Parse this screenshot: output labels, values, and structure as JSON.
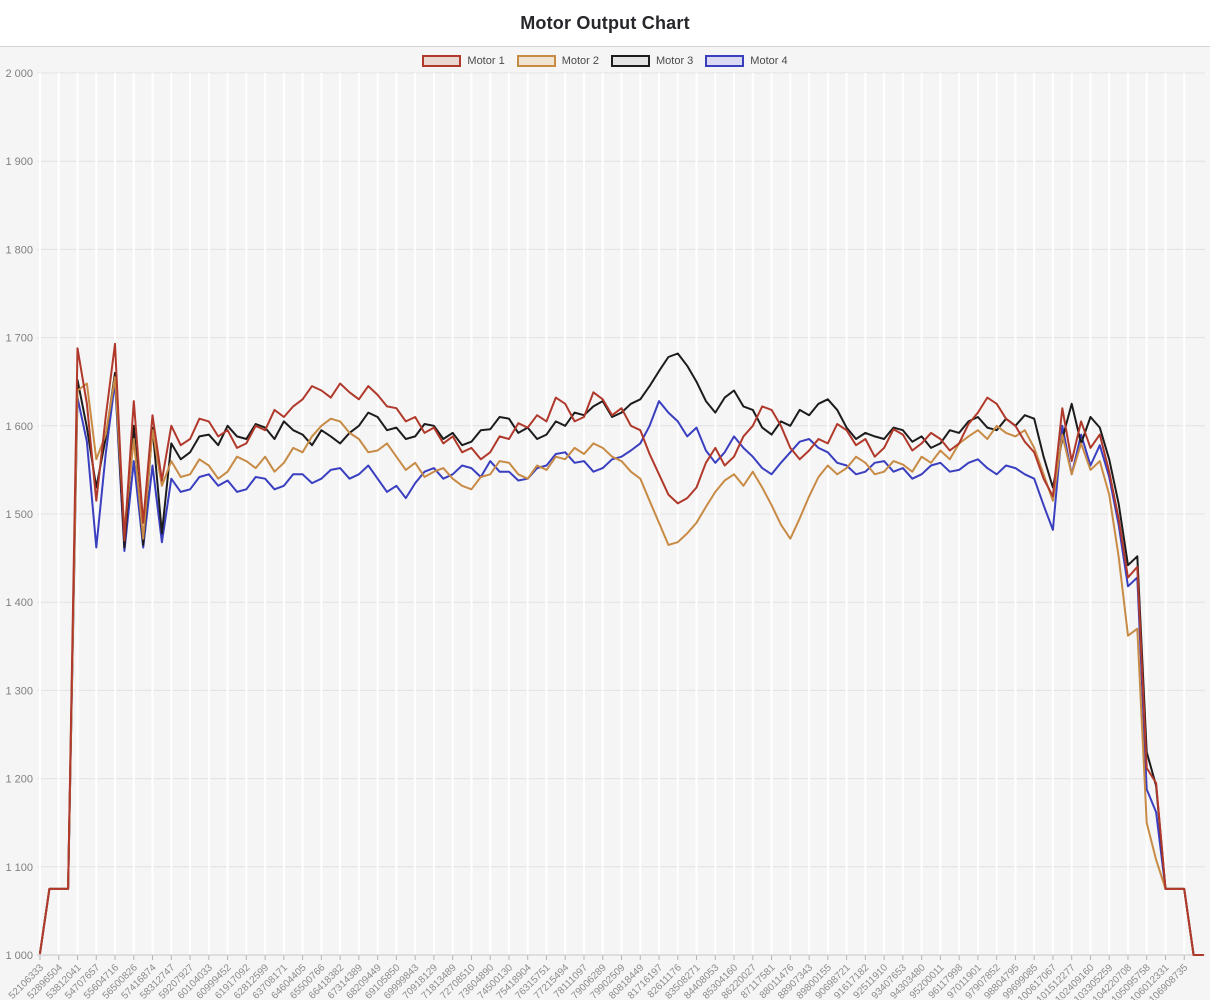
{
  "title": "Motor Output Chart",
  "legend": {
    "items": [
      {
        "label": "Motor 1",
        "color": "#b0392b",
        "swatch_fill": "#e9d8d2"
      },
      {
        "label": "Motor 2",
        "color": "#c88b46",
        "swatch_fill": "#efe3d1"
      },
      {
        "label": "Motor 3",
        "color": "#1c1c1c",
        "swatch_fill": "#e4e4e4"
      },
      {
        "label": "Motor 4",
        "color": "#3a3fc0",
        "swatch_fill": "#dadbf2"
      }
    ]
  },
  "chart_data": {
    "type": "line",
    "title": "Motor Output Chart",
    "xlabel": "",
    "ylabel": "",
    "ylim": [
      1000,
      2000
    ],
    "y_ticks": [
      {
        "value": 1000,
        "label": "1 000"
      },
      {
        "value": 1100,
        "label": "1 100"
      },
      {
        "value": 1200,
        "label": "1 200"
      },
      {
        "value": 1300,
        "label": "1 300"
      },
      {
        "value": 1400,
        "label": "1 400"
      },
      {
        "value": 1500,
        "label": "1 500"
      },
      {
        "value": 1600,
        "label": "1 600"
      },
      {
        "value": 1700,
        "label": "1 700"
      },
      {
        "value": 1800,
        "label": "1 800"
      },
      {
        "value": 1900,
        "label": "1 900"
      },
      {
        "value": 2000,
        "label": "2 000"
      }
    ],
    "x_tick_labels": [
      "52106333",
      "52896504",
      "53812041",
      "54707657",
      "55604716",
      "56500826",
      "57416874",
      "58312747",
      "59207927",
      "60104033",
      "60999452",
      "61917092",
      "62812599",
      "63708171",
      "64604405",
      "65500766",
      "66418382",
      "67314389",
      "68209449",
      "69105850",
      "69999843",
      "70918129",
      "71813489",
      "72708510",
      "73604890",
      "74500130",
      "75418904",
      "76315751",
      "77215494",
      "78111097",
      "79006289",
      "79902509",
      "80818449",
      "81716197",
      "82611176",
      "83508271",
      "84408053",
      "85304160",
      "86220027",
      "87117581",
      "88011476",
      "88907343",
      "89800155",
      "90698721",
      "91617182",
      "92511910",
      "93407653",
      "94303480",
      "95200011",
      "96117998",
      "97011901",
      "97907852",
      "98804795",
      "99699085",
      "100617067",
      "101512277",
      "102409160",
      "103305259",
      "104220708",
      "105095758",
      "106012331",
      "106908735"
    ],
    "sampling_note": "125 samples per series; x tick k sits at sample index 2k",
    "legend_position": "top-center",
    "grid": {
      "vertical": "#ffffff",
      "horizontal": "#e2e2e2",
      "panel_bg": "#f5f5f5"
    },
    "axis_style": {
      "axis_line": "#c8c8c8",
      "tick": "#b3b3b3",
      "y_label_color": "#808080",
      "x_label_color": "#8c8c8c",
      "title_color": "#26262b"
    },
    "draw_order": "last legend entry drawn first; Motor 1 on top",
    "series": [
      {
        "name": "Motor 1",
        "color": "#b0392b",
        "values": [
          1002,
          1075,
          1075,
          1075,
          1688,
          1625,
          1515,
          1610,
          1693,
          1470,
          1628,
          1490,
          1612,
          1538,
          1600,
          1578,
          1585,
          1608,
          1605,
          1588,
          1595,
          1575,
          1580,
          1600,
          1595,
          1618,
          1610,
          1622,
          1630,
          1645,
          1640,
          1632,
          1648,
          1638,
          1630,
          1645,
          1635,
          1622,
          1620,
          1605,
          1610,
          1592,
          1598,
          1580,
          1588,
          1570,
          1575,
          1562,
          1570,
          1588,
          1585,
          1603,
          1598,
          1612,
          1605,
          1632,
          1625,
          1605,
          1610,
          1638,
          1630,
          1612,
          1620,
          1600,
          1595,
          1568,
          1545,
          1522,
          1512,
          1518,
          1530,
          1558,
          1575,
          1555,
          1565,
          1588,
          1600,
          1622,
          1618,
          1600,
          1575,
          1562,
          1572,
          1585,
          1580,
          1602,
          1595,
          1578,
          1585,
          1565,
          1575,
          1596,
          1590,
          1572,
          1580,
          1592,
          1585,
          1572,
          1580,
          1602,
          1615,
          1632,
          1625,
          1608,
          1600,
          1582,
          1570,
          1540,
          1520,
          1620,
          1560,
          1605,
          1575,
          1590,
          1548,
          1495,
          1428,
          1440,
          1212,
          1195,
          1075,
          1075,
          1075,
          1000,
          1000
        ]
      },
      {
        "name": "Motor 2",
        "color": "#c88b46",
        "values": [
          1002,
          1075,
          1075,
          1075,
          1640,
          1648,
          1562,
          1590,
          1655,
          1482,
          1585,
          1472,
          1595,
          1532,
          1560,
          1542,
          1545,
          1562,
          1555,
          1540,
          1548,
          1565,
          1560,
          1552,
          1565,
          1548,
          1558,
          1575,
          1570,
          1588,
          1600,
          1608,
          1605,
          1592,
          1585,
          1570,
          1572,
          1580,
          1565,
          1550,
          1558,
          1542,
          1548,
          1552,
          1540,
          1532,
          1528,
          1542,
          1545,
          1560,
          1558,
          1545,
          1540,
          1555,
          1550,
          1565,
          1562,
          1575,
          1568,
          1580,
          1575,
          1565,
          1560,
          1548,
          1540,
          1515,
          1490,
          1465,
          1468,
          1478,
          1490,
          1508,
          1525,
          1538,
          1545,
          1532,
          1548,
          1530,
          1510,
          1488,
          1472,
          1495,
          1520,
          1542,
          1555,
          1545,
          1552,
          1565,
          1558,
          1545,
          1548,
          1560,
          1556,
          1548,
          1565,
          1558,
          1572,
          1562,
          1580,
          1588,
          1595,
          1585,
          1600,
          1592,
          1588,
          1595,
          1575,
          1545,
          1515,
          1590,
          1545,
          1580,
          1550,
          1560,
          1522,
          1452,
          1362,
          1370,
          1150,
          1108,
          1075,
          1075,
          1075,
          1000,
          1000
        ]
      },
      {
        "name": "Motor 3",
        "color": "#1c1c1c",
        "values": [
          1002,
          1075,
          1075,
          1075,
          1652,
          1598,
          1530,
          1586,
          1660,
          1462,
          1600,
          1465,
          1598,
          1478,
          1580,
          1562,
          1570,
          1588,
          1590,
          1578,
          1600,
          1588,
          1585,
          1602,
          1598,
          1585,
          1605,
          1595,
          1590,
          1578,
          1595,
          1588,
          1580,
          1592,
          1600,
          1615,
          1610,
          1595,
          1598,
          1585,
          1588,
          1602,
          1600,
          1585,
          1592,
          1578,
          1582,
          1595,
          1596,
          1610,
          1608,
          1592,
          1598,
          1585,
          1590,
          1605,
          1600,
          1615,
          1612,
          1622,
          1628,
          1610,
          1615,
          1625,
          1630,
          1645,
          1662,
          1678,
          1682,
          1668,
          1650,
          1628,
          1615,
          1632,
          1640,
          1622,
          1618,
          1598,
          1590,
          1605,
          1600,
          1618,
          1612,
          1625,
          1630,
          1618,
          1598,
          1585,
          1592,
          1588,
          1585,
          1598,
          1595,
          1582,
          1588,
          1575,
          1580,
          1595,
          1592,
          1605,
          1610,
          1598,
          1595,
          1608,
          1600,
          1612,
          1608,
          1565,
          1530,
          1585,
          1625,
          1580,
          1610,
          1598,
          1562,
          1512,
          1442,
          1452,
          1230,
          1192,
          1075,
          1075,
          1075,
          1000,
          1000
        ]
      },
      {
        "name": "Motor 4",
        "color": "#3a3fc0",
        "values": [
          1002,
          1075,
          1075,
          1075,
          1632,
          1582,
          1462,
          1568,
          1650,
          1458,
          1560,
          1462,
          1555,
          1468,
          1540,
          1525,
          1528,
          1542,
          1545,
          1532,
          1538,
          1525,
          1528,
          1542,
          1540,
          1528,
          1532,
          1545,
          1545,
          1535,
          1540,
          1550,
          1552,
          1540,
          1545,
          1555,
          1540,
          1525,
          1532,
          1518,
          1535,
          1548,
          1552,
          1540,
          1545,
          1555,
          1552,
          1542,
          1560,
          1548,
          1548,
          1538,
          1540,
          1552,
          1555,
          1568,
          1570,
          1558,
          1560,
          1548,
          1552,
          1562,
          1565,
          1572,
          1580,
          1600,
          1628,
          1615,
          1605,
          1588,
          1598,
          1572,
          1558,
          1570,
          1588,
          1575,
          1565,
          1552,
          1545,
          1558,
          1570,
          1582,
          1585,
          1575,
          1570,
          1558,
          1555,
          1545,
          1548,
          1558,
          1560,
          1548,
          1552,
          1540,
          1545,
          1555,
          1558,
          1548,
          1550,
          1558,
          1562,
          1552,
          1545,
          1555,
          1552,
          1545,
          1540,
          1510,
          1482,
          1600,
          1545,
          1590,
          1555,
          1578,
          1542,
          1488,
          1418,
          1428,
          1188,
          1162,
          1075,
          1075,
          1075,
          1000,
          1000
        ]
      }
    ]
  }
}
